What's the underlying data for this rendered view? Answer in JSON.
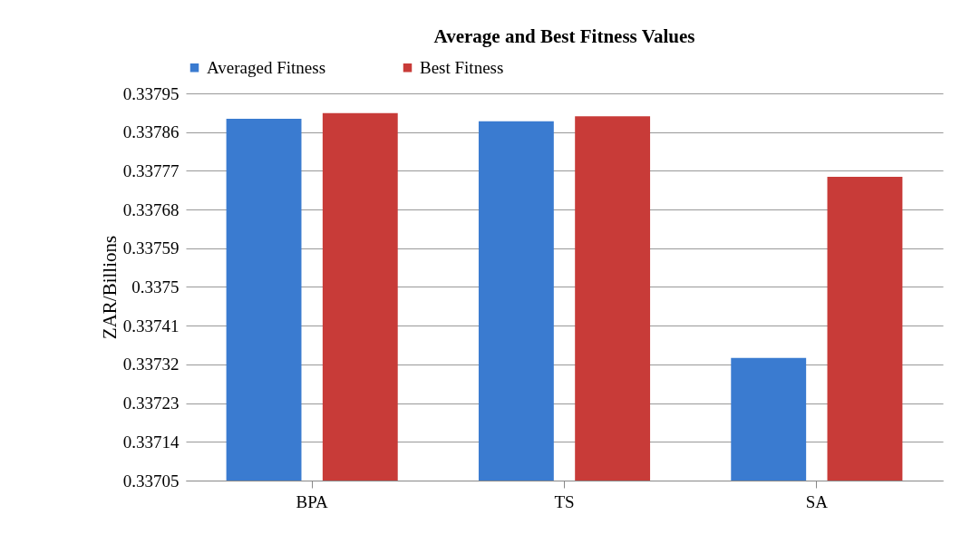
{
  "chart_data": {
    "type": "bar",
    "title": "Average and Best Fitness Values",
    "ylabel": "ZAR/Billions",
    "categories": [
      "BPA",
      "TS",
      "SA"
    ],
    "series": [
      {
        "name": "Averaged Fitness",
        "color": "#3a7bd0",
        "values": [
          0.337891,
          0.337885,
          0.337335
        ]
      },
      {
        "name": "Best Fitness",
        "color": "#c83b38",
        "values": [
          0.337904,
          0.337897,
          0.337756
        ]
      }
    ],
    "ylim": [
      0.33705,
      0.33795
    ],
    "yticks": [
      0.33705,
      0.33714,
      0.33723,
      0.33732,
      0.33741,
      0.3375,
      0.33759,
      0.33768,
      0.33777,
      0.33786,
      0.33795
    ],
    "grid": "y",
    "legend": "top"
  }
}
